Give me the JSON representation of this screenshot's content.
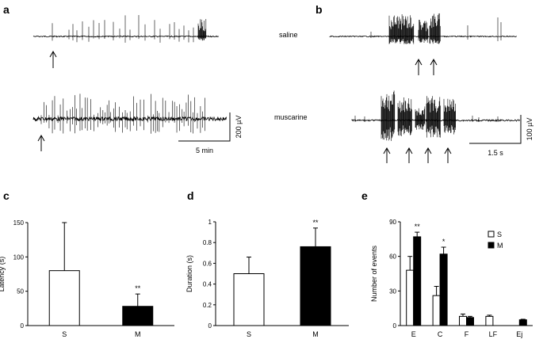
{
  "panels": {
    "a": {
      "letter": "a",
      "scale_bar_voltage": "200 µV",
      "scale_bar_time": "5 min"
    },
    "b": {
      "letter": "b",
      "trace_labels": [
        "saline",
        "muscarine"
      ],
      "scale_bar_voltage": "100 µV",
      "scale_bar_time": "1.5 s"
    },
    "c": {
      "letter": "c"
    },
    "d": {
      "letter": "d"
    },
    "e": {
      "letter": "e"
    }
  },
  "chart_data": [
    {
      "panel": "c",
      "type": "bar",
      "categories": [
        "S",
        "M"
      ],
      "values": [
        80,
        28
      ],
      "errors": [
        70,
        18
      ],
      "fills": [
        "#ffffff",
        "#000000"
      ],
      "significance": [
        "",
        "**"
      ],
      "ylabel": "Latency (s)",
      "xlabel": "",
      "title": "",
      "ylim": [
        0,
        150
      ],
      "yticks": [
        0,
        50,
        100,
        150
      ]
    },
    {
      "panel": "d",
      "type": "bar",
      "categories": [
        "S",
        "M"
      ],
      "values": [
        0.5,
        0.76
      ],
      "errors": [
        0.16,
        0.18
      ],
      "fills": [
        "#ffffff",
        "#000000"
      ],
      "significance": [
        "",
        "**"
      ],
      "ylabel": "Duration (s)",
      "xlabel": "",
      "title": "",
      "ylim": [
        0,
        1
      ],
      "yticks": [
        0,
        0.2,
        0.4,
        0.6,
        0.8,
        1
      ]
    },
    {
      "panel": "e",
      "type": "bar",
      "categories": [
        "E",
        "C",
        "F",
        "LF",
        "Ej"
      ],
      "series": [
        {
          "name": "S",
          "fill": "#ffffff",
          "values": [
            48,
            26,
            8,
            8,
            0
          ],
          "errors": [
            12,
            8,
            2,
            1,
            0
          ]
        },
        {
          "name": "M",
          "fill": "#000000",
          "values": [
            77,
            62,
            7,
            0,
            5
          ],
          "errors": [
            4,
            6,
            1,
            0,
            0.5
          ]
        }
      ],
      "significance": [
        "**",
        "*",
        "",
        "",
        ""
      ],
      "ylabel": "Number of events",
      "xlabel": "",
      "title": "",
      "legend": "top-right",
      "ylim": [
        0,
        90
      ],
      "yticks": [
        0,
        30,
        60,
        90
      ]
    }
  ]
}
